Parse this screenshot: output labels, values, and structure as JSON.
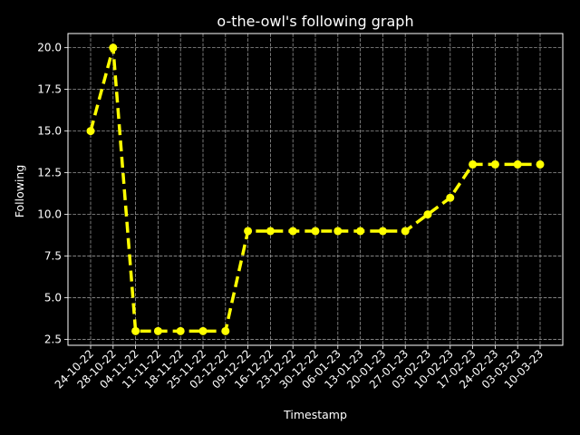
{
  "chart_data": {
    "type": "line",
    "title": "o-the-owl's following graph",
    "xlabel": "Timestamp",
    "ylabel": "Following",
    "categories": [
      "24-10-22",
      "28-10-22",
      "04-11-22",
      "11-11-22",
      "18-11-22",
      "25-11-22",
      "02-12-22",
      "09-12-22",
      "16-12-22",
      "23-12-22",
      "30-12-22",
      "06-01-23",
      "13-01-23",
      "20-01-23",
      "27-01-23",
      "03-02-23",
      "10-02-23",
      "17-02-23",
      "24-02-23",
      "03-03-23",
      "10-03-23"
    ],
    "series": [
      {
        "values": [
          15,
          20,
          3,
          3,
          3,
          3,
          3,
          9,
          9,
          9,
          9,
          9,
          9,
          9,
          9,
          10,
          11,
          13,
          13,
          13,
          13
        ],
        "color": "#ffff00",
        "line_style": "dashed",
        "marker": "circle"
      }
    ],
    "yticks": [
      "2.5",
      "5.0",
      "7.5",
      "10.0",
      "12.5",
      "15.0",
      "17.5",
      "20.0"
    ],
    "ylim": [
      2.15,
      20.85
    ],
    "grid": true,
    "grid_style": "dashed",
    "grid_color": "#b0b0b0",
    "legend": false,
    "background": "#000000",
    "axes_color": "#ffffff"
  }
}
